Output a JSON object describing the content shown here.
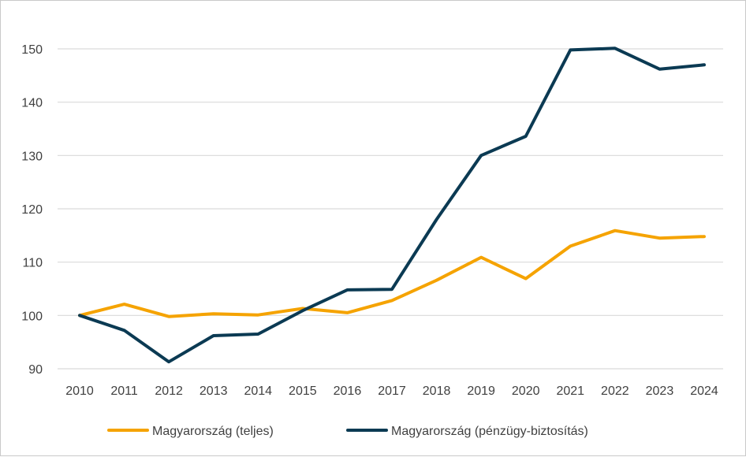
{
  "chart_data": {
    "type": "line",
    "title": "",
    "xlabel": "",
    "ylabel": "",
    "categories": [
      "2010",
      "2011",
      "2012",
      "2013",
      "2014",
      "2015",
      "2016",
      "2017",
      "2018",
      "2019",
      "2020",
      "2021",
      "2022",
      "2023",
      "2024"
    ],
    "ylim": [
      90,
      150
    ],
    "yticks": [
      90,
      100,
      110,
      120,
      130,
      140,
      150
    ],
    "grid": true,
    "legend_position": "bottom",
    "series": [
      {
        "name": "Magyarország (teljes)",
        "color": "#f5a300",
        "values": [
          100,
          102.1,
          99.8,
          100.3,
          100.1,
          101.3,
          100.5,
          102.8,
          106.6,
          110.9,
          106.9,
          113.0,
          115.9,
          114.5,
          114.8
        ]
      },
      {
        "name": "Magyarország (pénzügy-biztosítás)",
        "color": "#0b3a53",
        "values": [
          100,
          97.2,
          91.3,
          96.2,
          96.5,
          100.9,
          104.8,
          104.9,
          118.0,
          130.0,
          133.6,
          149.8,
          150.1,
          146.2,
          147.0
        ]
      }
    ]
  }
}
